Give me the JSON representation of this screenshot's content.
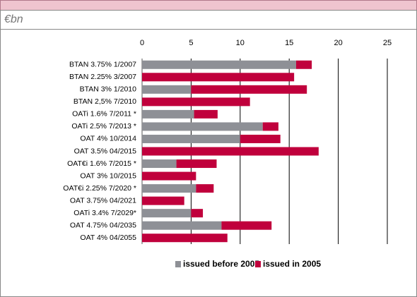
{
  "chart_data": {
    "type": "stacked-barh",
    "subtitle": "€bn",
    "categories": [
      "BTAN 3.75% 1/2007",
      "BTAN 2.25% 3/2007",
      "BTAN 3% 1/2010",
      "BTAN 2,5% 7/2010",
      "OATi 1.6% 7/2011 *",
      "OATi 2.5% 7/2013 *",
      "OAT 4% 10/2014",
      "OAT 3.5% 04/2015",
      "OAT€i 1.6% 7/2015 *",
      "OAT 3% 10/2015",
      "OAT€i 2.25% 7/2020 *",
      "OAT 3.75% 04/2021",
      "OATi 3.4% 7/2029*",
      "OAT 4.75% 04/2035",
      "OAT 4% 04/2055"
    ],
    "series": [
      {
        "name": "issued before 2005",
        "color": "#8e9096",
        "values": [
          15.7,
          0,
          5.0,
          0,
          5.3,
          12.3,
          10.0,
          0,
          3.5,
          0,
          5.5,
          0,
          5.0,
          8.1,
          0
        ]
      },
      {
        "name": "issued in 2005",
        "color": "#c0003c",
        "values": [
          1.6,
          15.5,
          11.8,
          11.0,
          2.4,
          1.6,
          4.1,
          18.0,
          4.1,
          5.5,
          1.8,
          4.3,
          1.2,
          5.1,
          8.7
        ]
      }
    ],
    "xlim": [
      0,
      25
    ],
    "xticks": [
      0,
      5,
      10,
      15,
      20,
      25
    ],
    "grid": true
  }
}
